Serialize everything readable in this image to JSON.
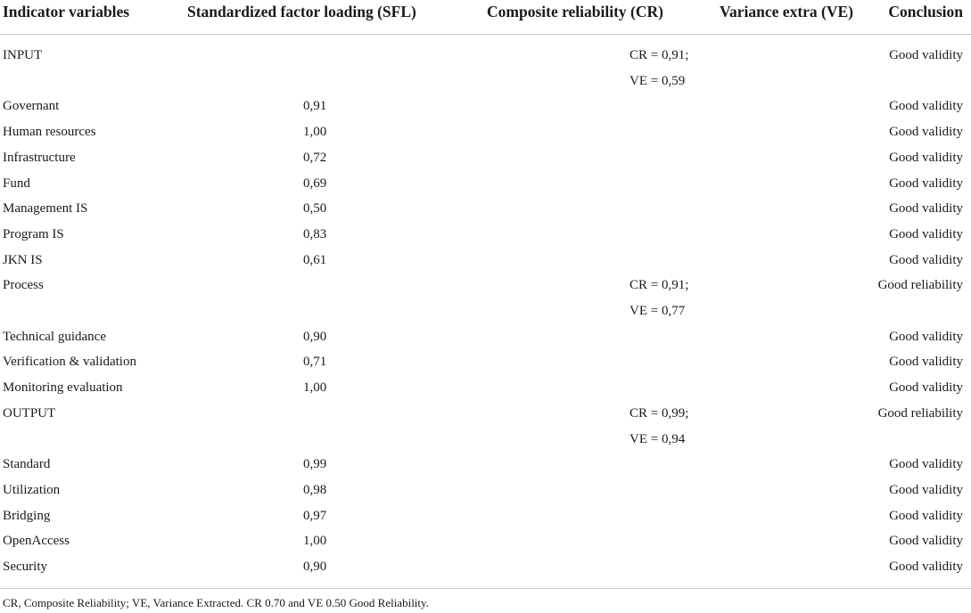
{
  "table": {
    "headers": [
      "Indicator variables",
      "Standardized factor loading (SFL)",
      "Composite reliability (CR)",
      "Variance extra (VE)",
      "Conclusion"
    ],
    "rows": [
      {
        "indicator": "INPUT",
        "sfl": "",
        "crve": "CR = 0,91;",
        "conclusion": "Good validity"
      },
      {
        "indicator": "",
        "sfl": "",
        "crve": "VE = 0,59",
        "conclusion": ""
      },
      {
        "indicator": "Governant",
        "sfl": "0,91",
        "crve": "",
        "conclusion": "Good validity"
      },
      {
        "indicator": "Human resources",
        "sfl": "1,00",
        "crve": "",
        "conclusion": "Good validity"
      },
      {
        "indicator": "Infrastructure",
        "sfl": "0,72",
        "crve": "",
        "conclusion": "Good validity"
      },
      {
        "indicator": "Fund",
        "sfl": "0,69",
        "crve": "",
        "conclusion": "Good validity"
      },
      {
        "indicator": "Management IS",
        "sfl": "0,50",
        "crve": "",
        "conclusion": "Good validity"
      },
      {
        "indicator": "Program IS",
        "sfl": "0,83",
        "crve": "",
        "conclusion": "Good validity"
      },
      {
        "indicator": "JKN IS",
        "sfl": "0,61",
        "crve": "",
        "conclusion": "Good validity"
      },
      {
        "indicator": "Process",
        "sfl": "",
        "crve": "CR = 0,91;",
        "conclusion": "Good reliability"
      },
      {
        "indicator": "",
        "sfl": "",
        "crve": "VE = 0,77",
        "conclusion": ""
      },
      {
        "indicator": "Technical guidance",
        "sfl": "0,90",
        "crve": "",
        "conclusion": "Good validity"
      },
      {
        "indicator": "Verification & validation",
        "sfl": "0,71",
        "crve": "",
        "conclusion": "Good validity"
      },
      {
        "indicator": "Monitoring evaluation",
        "sfl": "1,00",
        "crve": "",
        "conclusion": "Good validity"
      },
      {
        "indicator": "OUTPUT",
        "sfl": "",
        "crve": "CR = 0,99;",
        "conclusion": "Good reliability"
      },
      {
        "indicator": "",
        "sfl": "",
        "crve": "VE = 0,94",
        "conclusion": ""
      },
      {
        "indicator": "Standard",
        "sfl": "0,99",
        "crve": "",
        "conclusion": "Good validity"
      },
      {
        "indicator": "Utilization",
        "sfl": "0,98",
        "crve": "",
        "conclusion": "Good validity"
      },
      {
        "indicator": "Bridging",
        "sfl": "0,97",
        "crve": "",
        "conclusion": "Good validity"
      },
      {
        "indicator": "OpenAccess",
        "sfl": "1,00",
        "crve": "",
        "conclusion": "Good validity"
      },
      {
        "indicator": "Security",
        "sfl": "0,90",
        "crve": "",
        "conclusion": "Good validity"
      }
    ],
    "footnote": "CR, Composite Reliability; VE, Variance Extracted. CR 0.70 and VE 0.50 Good Reliability."
  }
}
